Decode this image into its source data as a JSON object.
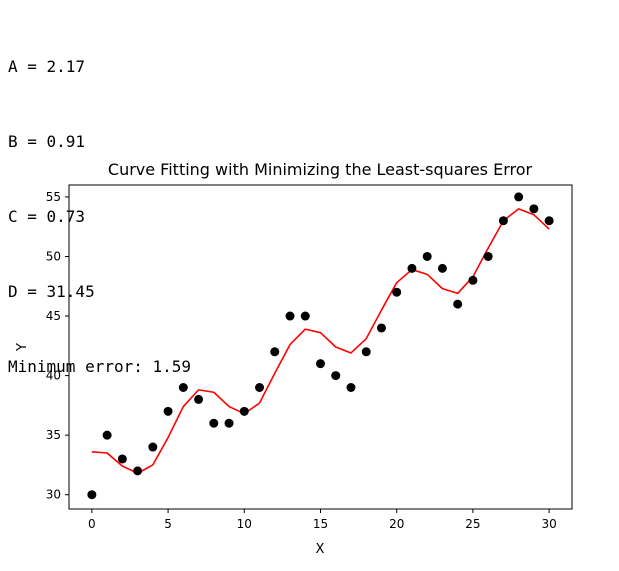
{
  "output": {
    "lines": [
      "A = 2.17",
      "B = 0.91",
      "C = 0.73",
      "D = 31.45",
      "Minimum error: 1.59"
    ]
  },
  "chart_data": {
    "type": "scatter",
    "title": "Curve Fitting with Minimizing the Least-squares Error",
    "xlabel": "X",
    "ylabel": "Y",
    "xlim": [
      -1.5,
      31.5
    ],
    "ylim": [
      28.8,
      56.0
    ],
    "xticks": [
      0,
      5,
      10,
      15,
      20,
      25,
      30
    ],
    "yticks": [
      30,
      35,
      40,
      45,
      50,
      55
    ],
    "grid": false,
    "series": [
      {
        "kind": "scatter",
        "color": "#000000",
        "x": [
          0,
          1,
          2,
          3,
          4,
          5,
          6,
          7,
          8,
          9,
          10,
          11,
          12,
          13,
          14,
          15,
          16,
          17,
          18,
          19,
          20,
          21,
          22,
          23,
          24,
          25,
          26,
          27,
          28,
          29,
          30
        ],
        "y": [
          30,
          35,
          33,
          32,
          34,
          37,
          39,
          38,
          36,
          36,
          37,
          39,
          42,
          45,
          45,
          41,
          40,
          39,
          42,
          44,
          47,
          49,
          50,
          49,
          46,
          48,
          50,
          53,
          55,
          54,
          53
        ]
      },
      {
        "kind": "line",
        "color": "#ff0000",
        "x": [
          0,
          1,
          2,
          3,
          4,
          5,
          6,
          7,
          8,
          9,
          10,
          11,
          12,
          13,
          14,
          15,
          16,
          17,
          18,
          19,
          20,
          21,
          22,
          23,
          24,
          25,
          26,
          27,
          28,
          29,
          30
        ],
        "y": [
          33.6,
          33.5,
          32.4,
          31.8,
          32.5,
          34.8,
          37.4,
          38.8,
          38.6,
          37.4,
          36.8,
          37.7,
          40.2,
          42.6,
          43.9,
          43.6,
          42.4,
          41.9,
          43.1,
          45.5,
          47.8,
          48.9,
          48.5,
          47.3,
          46.9,
          48.3,
          50.7,
          53.0,
          54.0,
          53.5,
          52.3
        ]
      }
    ]
  }
}
